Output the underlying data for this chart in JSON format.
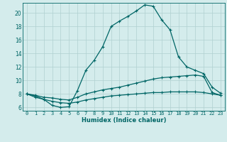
{
  "xlabel": "Humidex (Indice chaleur)",
  "bg_color": "#d4ecec",
  "grid_color": "#b0d0d0",
  "line_color": "#006666",
  "xlim": [
    -0.5,
    23.5
  ],
  "ylim": [
    5.5,
    21.5
  ],
  "xticks": [
    0,
    1,
    2,
    3,
    4,
    5,
    6,
    7,
    8,
    9,
    10,
    11,
    12,
    13,
    14,
    15,
    16,
    17,
    18,
    19,
    20,
    21,
    22,
    23
  ],
  "yticks": [
    6,
    8,
    10,
    12,
    14,
    16,
    18,
    20
  ],
  "line1_x": [
    0,
    1,
    2,
    3,
    4,
    5,
    6,
    7,
    8,
    9,
    10,
    11,
    12,
    13,
    14,
    15,
    16,
    17,
    18,
    19,
    20,
    21,
    22,
    23
  ],
  "line1_y": [
    8.0,
    7.5,
    7.2,
    6.3,
    6.0,
    6.1,
    8.5,
    11.5,
    13.0,
    15.0,
    18.0,
    18.8,
    19.5,
    20.3,
    21.2,
    21.0,
    19.0,
    17.5,
    13.5,
    12.0,
    11.5,
    11.0,
    9.0,
    8.1
  ],
  "line2_x": [
    0,
    1,
    2,
    3,
    4,
    5,
    6,
    7,
    8,
    9,
    10,
    11,
    12,
    13,
    14,
    15,
    16,
    17,
    18,
    19,
    20,
    21,
    22,
    23
  ],
  "line2_y": [
    8.0,
    7.8,
    7.5,
    7.4,
    7.2,
    7.1,
    7.5,
    8.0,
    8.3,
    8.6,
    8.8,
    9.0,
    9.3,
    9.6,
    9.9,
    10.2,
    10.4,
    10.5,
    10.6,
    10.7,
    10.8,
    10.6,
    8.2,
    7.8
  ],
  "line3_x": [
    0,
    1,
    2,
    3,
    4,
    5,
    6,
    7,
    8,
    9,
    10,
    11,
    12,
    13,
    14,
    15,
    16,
    17,
    18,
    19,
    20,
    21,
    22,
    23
  ],
  "line3_y": [
    8.0,
    7.7,
    7.2,
    6.9,
    6.7,
    6.6,
    6.8,
    7.1,
    7.3,
    7.5,
    7.7,
    7.8,
    7.9,
    8.0,
    8.1,
    8.2,
    8.2,
    8.3,
    8.3,
    8.3,
    8.3,
    8.2,
    8.0,
    7.8
  ]
}
